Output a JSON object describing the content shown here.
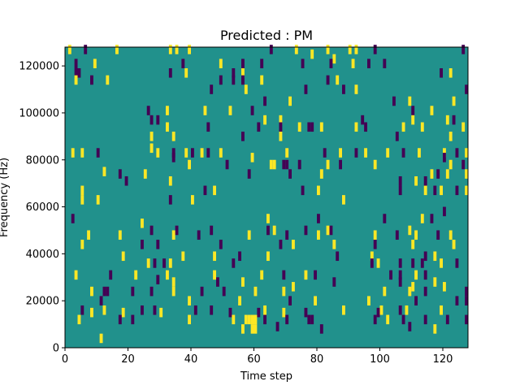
{
  "chart_data": {
    "type": "heatmap",
    "title": "Predicted : PM",
    "xlabel": "Time step",
    "ylabel": "Frequency (Hz)",
    "xlim": [
      0,
      128
    ],
    "ylim": [
      0,
      128000
    ],
    "x_ticks": [
      "0",
      "20",
      "40",
      "60",
      "80",
      "100",
      "120"
    ],
    "y_ticks": [
      "0",
      "20000",
      "40000",
      "60000",
      "80000",
      "100000",
      "120000"
    ],
    "colormap": "viridis",
    "colors": {
      "background": "#21918c",
      "high": "#fde725",
      "low": "#440154"
    },
    "cells": [
      [
        1,
        125000,
        "high"
      ],
      [
        6,
        125000,
        "low"
      ],
      [
        16,
        125000,
        "high"
      ],
      [
        33,
        125000,
        "high"
      ],
      [
        35,
        125000,
        "high"
      ],
      [
        39,
        125000,
        "high"
      ],
      [
        65,
        125000,
        "low"
      ],
      [
        73,
        125000,
        "high"
      ],
      [
        83,
        125000,
        "high"
      ],
      [
        90,
        125000,
        "high"
      ],
      [
        92,
        125000,
        "high"
      ],
      [
        98,
        125000,
        "low"
      ],
      [
        126,
        125000,
        "low"
      ],
      [
        78,
        123000,
        "high"
      ],
      [
        85,
        121000,
        "high"
      ],
      [
        3,
        119000,
        "low"
      ],
      [
        9,
        119000,
        "high"
      ],
      [
        37,
        119000,
        "low"
      ],
      [
        49,
        119000,
        "high"
      ],
      [
        56,
        119000,
        "low"
      ],
      [
        62,
        119000,
        "low"
      ],
      [
        75,
        119000,
        "low"
      ],
      [
        84,
        119000,
        "low"
      ],
      [
        91,
        119000,
        "high"
      ],
      [
        96,
        119000,
        "low"
      ],
      [
        101,
        119000,
        "low"
      ],
      [
        3,
        115000,
        "low"
      ],
      [
        4,
        115000,
        "low"
      ],
      [
        33,
        115000,
        "low"
      ],
      [
        38,
        115000,
        "high"
      ],
      [
        53,
        115000,
        "low"
      ],
      [
        56,
        115000,
        "high"
      ],
      [
        119,
        115000,
        "low"
      ],
      [
        122,
        115000,
        "high"
      ],
      [
        3,
        112000,
        "high"
      ],
      [
        8,
        112000,
        "low"
      ],
      [
        13,
        112000,
        "high"
      ],
      [
        49,
        112000,
        "low"
      ],
      [
        53,
        112000,
        "low"
      ],
      [
        56,
        112000,
        "low"
      ],
      [
        62,
        112000,
        "high"
      ],
      [
        83,
        112000,
        "low"
      ],
      [
        86,
        112000,
        "high"
      ],
      [
        57,
        108000,
        "high"
      ],
      [
        46,
        108000,
        "low"
      ],
      [
        76,
        108000,
        "low"
      ],
      [
        88,
        108000,
        "low"
      ],
      [
        92,
        108000,
        "high"
      ],
      [
        127,
        108000,
        "low"
      ],
      [
        63,
        103000,
        "low"
      ],
      [
        71,
        103000,
        "high"
      ],
      [
        104,
        103000,
        "low"
      ],
      [
        109,
        103000,
        "high"
      ],
      [
        123,
        103000,
        "high"
      ],
      [
        26,
        99000,
        "low"
      ],
      [
        32,
        99000,
        "high"
      ],
      [
        44,
        99000,
        "high"
      ],
      [
        52,
        99000,
        "high"
      ],
      [
        59,
        99000,
        "low"
      ],
      [
        110,
        99000,
        "low"
      ],
      [
        116,
        99000,
        "high"
      ],
      [
        27,
        95000,
        "low"
      ],
      [
        29,
        95000,
        "low"
      ],
      [
        63,
        95000,
        "high"
      ],
      [
        68,
        95000,
        "high"
      ],
      [
        94,
        95000,
        "low"
      ],
      [
        110,
        95000,
        "high"
      ],
      [
        121,
        95000,
        "high"
      ],
      [
        123,
        95000,
        "low"
      ],
      [
        32,
        92000,
        "high"
      ],
      [
        45,
        92000,
        "low"
      ],
      [
        61,
        92000,
        "low"
      ],
      [
        68,
        92000,
        "low"
      ],
      [
        74,
        92000,
        "high"
      ],
      [
        77,
        92000,
        "low"
      ],
      [
        78,
        92000,
        "low"
      ],
      [
        81,
        92000,
        "high"
      ],
      [
        92,
        92000,
        "high"
      ],
      [
        95,
        92000,
        "low"
      ],
      [
        107,
        92000,
        "high"
      ],
      [
        113,
        92000,
        "high"
      ],
      [
        126,
        92000,
        "high"
      ],
      [
        27,
        88000,
        "high"
      ],
      [
        34,
        88000,
        "high"
      ],
      [
        56,
        88000,
        "low"
      ],
      [
        68,
        88000,
        "high"
      ],
      [
        105,
        88000,
        "low"
      ],
      [
        122,
        88000,
        "high"
      ],
      [
        2,
        81000,
        "high"
      ],
      [
        5,
        81000,
        "high"
      ],
      [
        10,
        81000,
        "low"
      ],
      [
        29,
        81000,
        "high"
      ],
      [
        34,
        81000,
        "low"
      ],
      [
        38,
        81000,
        "high"
      ],
      [
        40,
        81000,
        "low"
      ],
      [
        43,
        81000,
        "high"
      ],
      [
        45,
        81000,
        "low"
      ],
      [
        49,
        81000,
        "high"
      ],
      [
        70,
        81000,
        "high"
      ],
      [
        82,
        81000,
        "low"
      ],
      [
        87,
        81000,
        "high"
      ],
      [
        92,
        81000,
        "low"
      ],
      [
        95,
        81000,
        "high"
      ],
      [
        102,
        81000,
        "high"
      ],
      [
        107,
        81000,
        "low"
      ],
      [
        112,
        81000,
        "high"
      ],
      [
        120,
        81000,
        "high"
      ],
      [
        124,
        81000,
        "low"
      ],
      [
        127,
        81000,
        "high"
      ],
      [
        27,
        83000,
        "high"
      ],
      [
        34,
        79000,
        "low"
      ],
      [
        59,
        79000,
        "high"
      ],
      [
        120,
        79000,
        "low"
      ],
      [
        39,
        76000,
        "high"
      ],
      [
        51,
        76000,
        "low"
      ],
      [
        65,
        76000,
        "high"
      ],
      [
        66,
        76000,
        "high"
      ],
      [
        69,
        76000,
        "low"
      ],
      [
        70,
        76000,
        "low"
      ],
      [
        74,
        76000,
        "low"
      ],
      [
        83,
        76000,
        "high"
      ],
      [
        87,
        76000,
        "low"
      ],
      [
        98,
        76000,
        "high"
      ],
      [
        122,
        76000,
        "high"
      ],
      [
        126,
        76000,
        "low"
      ],
      [
        12,
        73000,
        "high"
      ],
      [
        17,
        72000,
        "low"
      ],
      [
        25,
        72000,
        "high"
      ],
      [
        58,
        72000,
        "low"
      ],
      [
        71,
        72000,
        "low"
      ],
      [
        81,
        72000,
        "high"
      ],
      [
        116,
        72000,
        "high"
      ],
      [
        118,
        72000,
        "low"
      ],
      [
        121,
        72000,
        "high"
      ],
      [
        127,
        72000,
        "high"
      ],
      [
        19,
        69000,
        "low"
      ],
      [
        33,
        69000,
        "high"
      ],
      [
        106,
        69000,
        "low"
      ],
      [
        111,
        69000,
        "high"
      ],
      [
        114,
        69000,
        "low"
      ],
      [
        5,
        65000,
        "high"
      ],
      [
        44,
        65000,
        "low"
      ],
      [
        47,
        65000,
        "high"
      ],
      [
        75,
        65000,
        "low"
      ],
      [
        80,
        65000,
        "high"
      ],
      [
        106,
        65000,
        "low"
      ],
      [
        114,
        65000,
        "high"
      ],
      [
        117,
        65000,
        "low"
      ],
      [
        119,
        65000,
        "high"
      ],
      [
        124,
        65000,
        "low"
      ],
      [
        127,
        65000,
        "high"
      ],
      [
        5,
        61000,
        "high"
      ],
      [
        10,
        61000,
        "high"
      ],
      [
        33,
        61000,
        "low"
      ],
      [
        40,
        61000,
        "high"
      ],
      [
        88,
        61000,
        "high"
      ],
      [
        120,
        56000,
        "low"
      ],
      [
        2,
        53000,
        "low"
      ],
      [
        24,
        51000,
        "high"
      ],
      [
        64,
        53000,
        "high"
      ],
      [
        80,
        53000,
        "low"
      ],
      [
        101,
        53000,
        "low"
      ],
      [
        113,
        53000,
        "high"
      ],
      [
        116,
        53000,
        "low"
      ],
      [
        27,
        48000,
        "low"
      ],
      [
        35,
        48000,
        "low"
      ],
      [
        46,
        48000,
        "low"
      ],
      [
        64,
        48000,
        "low"
      ],
      [
        66,
        48000,
        "high"
      ],
      [
        76,
        48000,
        "low"
      ],
      [
        83,
        48000,
        "high"
      ],
      [
        84,
        48000,
        "low"
      ],
      [
        109,
        48000,
        "high"
      ],
      [
        7,
        46000,
        "high"
      ],
      [
        17,
        46000,
        "high"
      ],
      [
        34,
        46000,
        "high"
      ],
      [
        42,
        46000,
        "low"
      ],
      [
        58,
        46000,
        "high"
      ],
      [
        70,
        46000,
        "low"
      ],
      [
        80,
        46000,
        "high"
      ],
      [
        98,
        46000,
        "high"
      ],
      [
        105,
        46000,
        "low"
      ],
      [
        111,
        46000,
        "high"
      ],
      [
        118,
        46000,
        "low"
      ],
      [
        122,
        46000,
        "high"
      ],
      [
        5,
        42000,
        "high"
      ],
      [
        24,
        42000,
        "low"
      ],
      [
        29,
        42000,
        "low"
      ],
      [
        49,
        42000,
        "low"
      ],
      [
        68,
        42000,
        "low"
      ],
      [
        72,
        42000,
        "high"
      ],
      [
        85,
        42000,
        "high"
      ],
      [
        98,
        42000,
        "low"
      ],
      [
        110,
        42000,
        "high"
      ],
      [
        123,
        42000,
        "high"
      ],
      [
        18,
        37000,
        "high"
      ],
      [
        37,
        37000,
        "high"
      ],
      [
        47,
        37000,
        "high"
      ],
      [
        55,
        37000,
        "low"
      ],
      [
        64,
        37000,
        "high"
      ],
      [
        86,
        37000,
        "low"
      ],
      [
        97,
        37000,
        "high"
      ],
      [
        114,
        37000,
        "low"
      ],
      [
        117,
        37000,
        "high"
      ],
      [
        26,
        34000,
        "high"
      ],
      [
        28,
        34000,
        "low"
      ],
      [
        31,
        34000,
        "low"
      ],
      [
        33,
        34000,
        "high"
      ],
      [
        53,
        34000,
        "low"
      ],
      [
        97,
        34000,
        "low"
      ],
      [
        99,
        34000,
        "high"
      ],
      [
        106,
        34000,
        "low"
      ],
      [
        110,
        34000,
        "low"
      ],
      [
        113,
        34000,
        "low"
      ],
      [
        119,
        34000,
        "high"
      ],
      [
        124,
        34000,
        "low"
      ],
      [
        3,
        29000,
        "high"
      ],
      [
        14,
        29000,
        "low"
      ],
      [
        22,
        29000,
        "high"
      ],
      [
        32,
        29000,
        "high"
      ],
      [
        47,
        29000,
        "high"
      ],
      [
        62,
        29000,
        "high"
      ],
      [
        69,
        29000,
        "low"
      ],
      [
        76,
        29000,
        "high"
      ],
      [
        79,
        29000,
        "low"
      ],
      [
        103,
        29000,
        "low"
      ],
      [
        106,
        29000,
        "low"
      ],
      [
        111,
        29000,
        "high"
      ],
      [
        114,
        29000,
        "low"
      ],
      [
        29,
        27000,
        "low"
      ],
      [
        34,
        26000,
        "high"
      ],
      [
        48,
        26000,
        "low"
      ],
      [
        56,
        26000,
        "high"
      ],
      [
        72,
        24000,
        "high"
      ],
      [
        85,
        26000,
        "low"
      ],
      [
        106,
        26000,
        "low"
      ],
      [
        110,
        24000,
        "high"
      ],
      [
        117,
        26000,
        "high"
      ],
      [
        120,
        24000,
        "high"
      ],
      [
        8,
        22000,
        "high"
      ],
      [
        12,
        22000,
        "low"
      ],
      [
        13,
        22000,
        "low"
      ],
      [
        21,
        22000,
        "low"
      ],
      [
        27,
        22000,
        "low"
      ],
      [
        34,
        22000,
        "high"
      ],
      [
        43,
        22000,
        "low"
      ],
      [
        50,
        22000,
        "low"
      ],
      [
        60,
        22000,
        "high"
      ],
      [
        69,
        22000,
        "high"
      ],
      [
        101,
        22000,
        "high"
      ],
      [
        109,
        22000,
        "high"
      ],
      [
        114,
        22000,
        "low"
      ],
      [
        127,
        22000,
        "low"
      ],
      [
        11,
        18000,
        "low"
      ],
      [
        39,
        18000,
        "high"
      ],
      [
        55,
        18000,
        "high"
      ],
      [
        71,
        18000,
        "low"
      ],
      [
        79,
        18000,
        "high"
      ],
      [
        96,
        18000,
        "high"
      ],
      [
        111,
        18000,
        "low"
      ],
      [
        124,
        18000,
        "low"
      ],
      [
        127,
        18000,
        "low"
      ],
      [
        5,
        14000,
        "low"
      ],
      [
        12,
        14000,
        "high"
      ],
      [
        24,
        14000,
        "low"
      ],
      [
        28,
        14000,
        "low"
      ],
      [
        41,
        14000,
        "low"
      ],
      [
        46,
        14000,
        "low"
      ],
      [
        63,
        14000,
        "high"
      ],
      [
        88,
        14000,
        "high"
      ],
      [
        100,
        14000,
        "high"
      ],
      [
        106,
        14000,
        "low"
      ],
      [
        108,
        14000,
        "high"
      ],
      [
        119,
        14000,
        "high"
      ],
      [
        8,
        13000,
        "high"
      ],
      [
        18,
        13000,
        "high"
      ],
      [
        30,
        13000,
        "high"
      ],
      [
        52,
        13000,
        "low"
      ],
      [
        61,
        13000,
        "low"
      ],
      [
        69,
        13000,
        "high"
      ],
      [
        76,
        13000,
        "low"
      ],
      [
        99,
        13000,
        "low"
      ],
      [
        4,
        10000,
        "high"
      ],
      [
        17,
        10000,
        "low"
      ],
      [
        21,
        10000,
        "low"
      ],
      [
        39,
        10000,
        "high"
      ],
      [
        53,
        10000,
        "high"
      ],
      [
        57,
        10000,
        "high"
      ],
      [
        58,
        10000,
        "high"
      ],
      [
        59,
        10000,
        "high"
      ],
      [
        60,
        10000,
        "high"
      ],
      [
        63,
        10000,
        "low"
      ],
      [
        70,
        10000,
        "low"
      ],
      [
        77,
        10000,
        "low"
      ],
      [
        78,
        10000,
        "low"
      ],
      [
        98,
        10000,
        "low"
      ],
      [
        102,
        10000,
        "high"
      ],
      [
        107,
        10000,
        "low"
      ],
      [
        114,
        10000,
        "low"
      ],
      [
        121,
        10000,
        "low"
      ],
      [
        127,
        10000,
        "low"
      ],
      [
        56,
        6000,
        "high"
      ],
      [
        59,
        6000,
        "high"
      ],
      [
        60,
        6000,
        "high"
      ],
      [
        81,
        6000,
        "low"
      ],
      [
        117,
        6000,
        "high"
      ],
      [
        11,
        2000,
        "high"
      ],
      [
        67,
        7000,
        "low"
      ],
      [
        109,
        7000,
        "low"
      ]
    ]
  }
}
